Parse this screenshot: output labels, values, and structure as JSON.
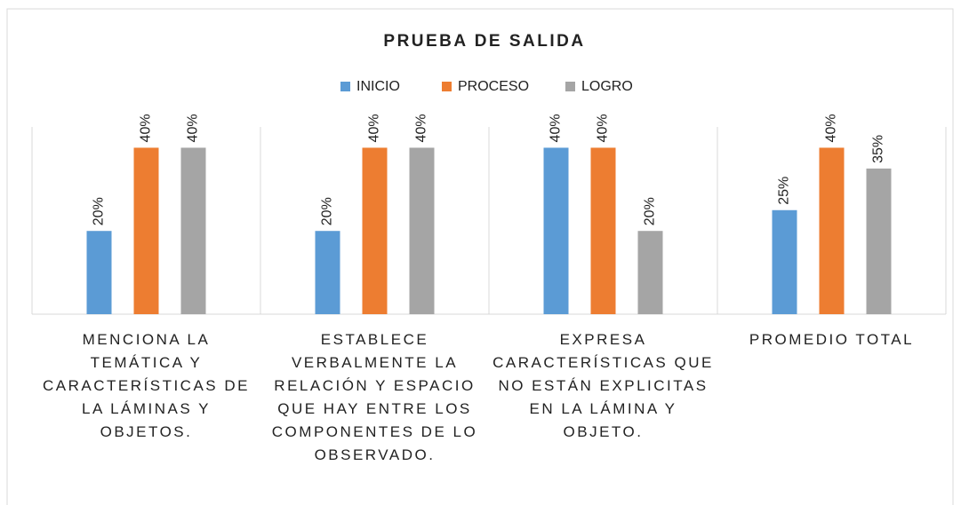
{
  "chart_data": {
    "type": "bar",
    "title": "PRUEBA DE SALIDA",
    "categories": [
      "MENCIONA LA TEMÁTICA Y CARACTERÍSTICAS DE LA LÁMINAS Y OBJETOS.",
      "ESTABLECE VERBALMENTE LA RELACIÓN Y ESPACIO QUE HAY ENTRE LOS COMPONENTES DE LO OBSERVADO.",
      "EXPRESA CARACTERÍSTICAS QUE NO ESTÁN EXPLICITAS EN LA LÁMINA Y OBJETO.",
      "PROMEDIO TOTAL"
    ],
    "series": [
      {
        "name": "INICIO",
        "color": "#5b9bd5",
        "values": [
          20,
          20,
          40,
          25
        ],
        "value_labels": [
          "20%",
          "20%",
          "40%",
          "25%"
        ]
      },
      {
        "name": "PROCESO",
        "color": "#ed7d31",
        "values": [
          40,
          40,
          40,
          40
        ],
        "value_labels": [
          "40%",
          "40%",
          "40%",
          "40%"
        ]
      },
      {
        "name": "LOGRO",
        "color": "#a5a5a5",
        "values": [
          40,
          40,
          20,
          35
        ],
        "value_labels": [
          "40%",
          "40%",
          "20%",
          "35%"
        ]
      }
    ],
    "ylim": [
      0,
      45
    ],
    "legend": "top"
  }
}
